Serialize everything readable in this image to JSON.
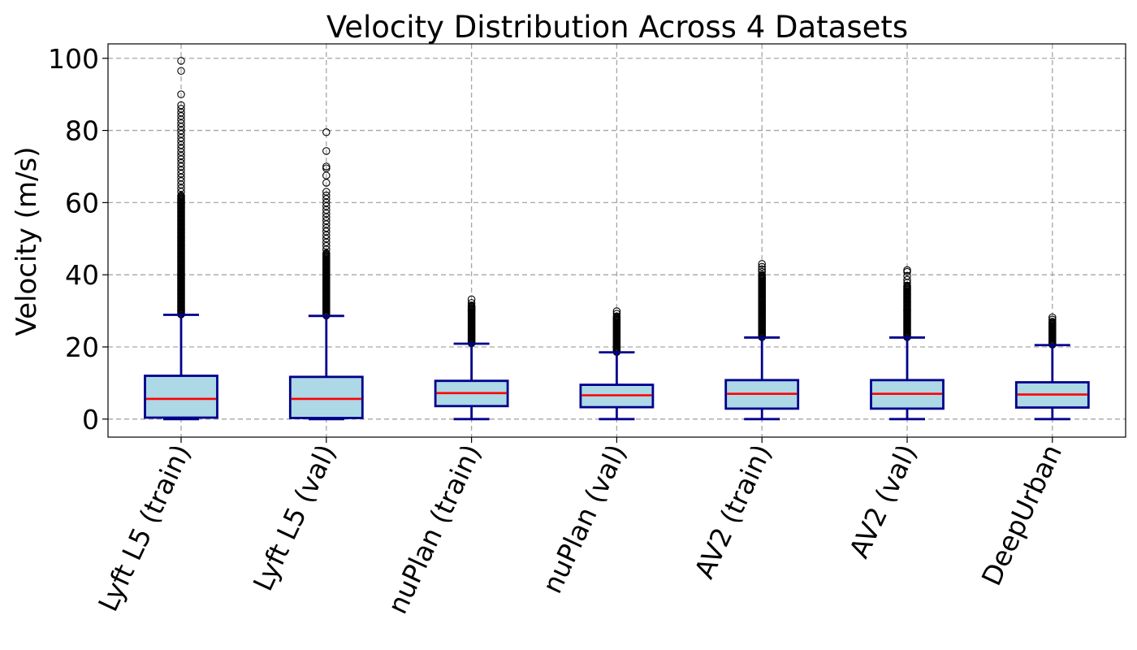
{
  "chart_data": {
    "type": "box",
    "title": "Velocity Distribution Across 4 Datasets",
    "xlabel": "",
    "ylabel": "Velocity (m/s)",
    "ylim": [
      -5,
      104
    ],
    "yticks": [
      0,
      20,
      40,
      60,
      80,
      100
    ],
    "grid": true,
    "colors": {
      "box_fill": "#add8e6",
      "box_edge": "#00008b",
      "median": "#ff0000",
      "grid": "#a6a6a6",
      "flier_edge": "#000000"
    },
    "categories": [
      "Lyft L5 (train)",
      "Lyft L5 (val)",
      "nuPlan (train)",
      "nuPlan (val)",
      "AV2 (train)",
      "AV2 (val)",
      "DeepUrban"
    ],
    "boxes": [
      {
        "name": "Lyft L5 (train)",
        "whislo": 0,
        "q1": 0.4,
        "med": 5.6,
        "q3": 12.0,
        "whishi": 28.9,
        "flier_range": [
          29.0,
          62.0
        ],
        "fliers": [
          63,
          64,
          65,
          66,
          67,
          68,
          69,
          70,
          71,
          72,
          73,
          74,
          75,
          76,
          77,
          78,
          79,
          80,
          81,
          82,
          83,
          84,
          85,
          86,
          87,
          90,
          96.5,
          99.3
        ]
      },
      {
        "name": "Lyft L5 (val)",
        "whislo": 0,
        "q1": 0.3,
        "med": 5.6,
        "q3": 11.7,
        "whishi": 28.6,
        "flier_range": [
          28.7,
          46.0
        ],
        "fliers": [
          47,
          48,
          49,
          50,
          51,
          52,
          53,
          54,
          55,
          56,
          57,
          58,
          59,
          60,
          61,
          62,
          63,
          65.5,
          67.5,
          69.5,
          70,
          74.3,
          79.5
        ]
      },
      {
        "name": "nuPlan (train)",
        "whislo": 0,
        "q1": 3.6,
        "med": 7.2,
        "q3": 10.6,
        "whishi": 20.9,
        "flier_range": [
          21.0,
          31.5
        ],
        "fliers": [
          32.2,
          33.2
        ]
      },
      {
        "name": "nuPlan (val)",
        "whislo": 0,
        "q1": 3.3,
        "med": 6.6,
        "q3": 9.5,
        "whishi": 18.5,
        "flier_range": [
          18.6,
          28.5
        ],
        "fliers": [
          29.2,
          29.9
        ]
      },
      {
        "name": "AV2 (train)",
        "whislo": 0,
        "q1": 2.9,
        "med": 7.0,
        "q3": 10.8,
        "whishi": 22.6,
        "flier_range": [
          22.7,
          40.0
        ],
        "fliers": [
          40.8,
          41.5,
          42.2,
          43.0
        ]
      },
      {
        "name": "AV2 (val)",
        "whislo": 0,
        "q1": 2.9,
        "med": 7.0,
        "q3": 10.8,
        "whishi": 22.6,
        "flier_range": [
          22.7,
          37.0
        ],
        "fliers": [
          37.8,
          38.6,
          39.7,
          40.8,
          41.3
        ]
      },
      {
        "name": "DeepUrban",
        "whislo": 0,
        "q1": 3.2,
        "med": 6.8,
        "q3": 10.2,
        "whishi": 20.5,
        "flier_range": [
          20.6,
          27.0
        ],
        "fliers": [
          27.6,
          28.2
        ]
      }
    ]
  }
}
